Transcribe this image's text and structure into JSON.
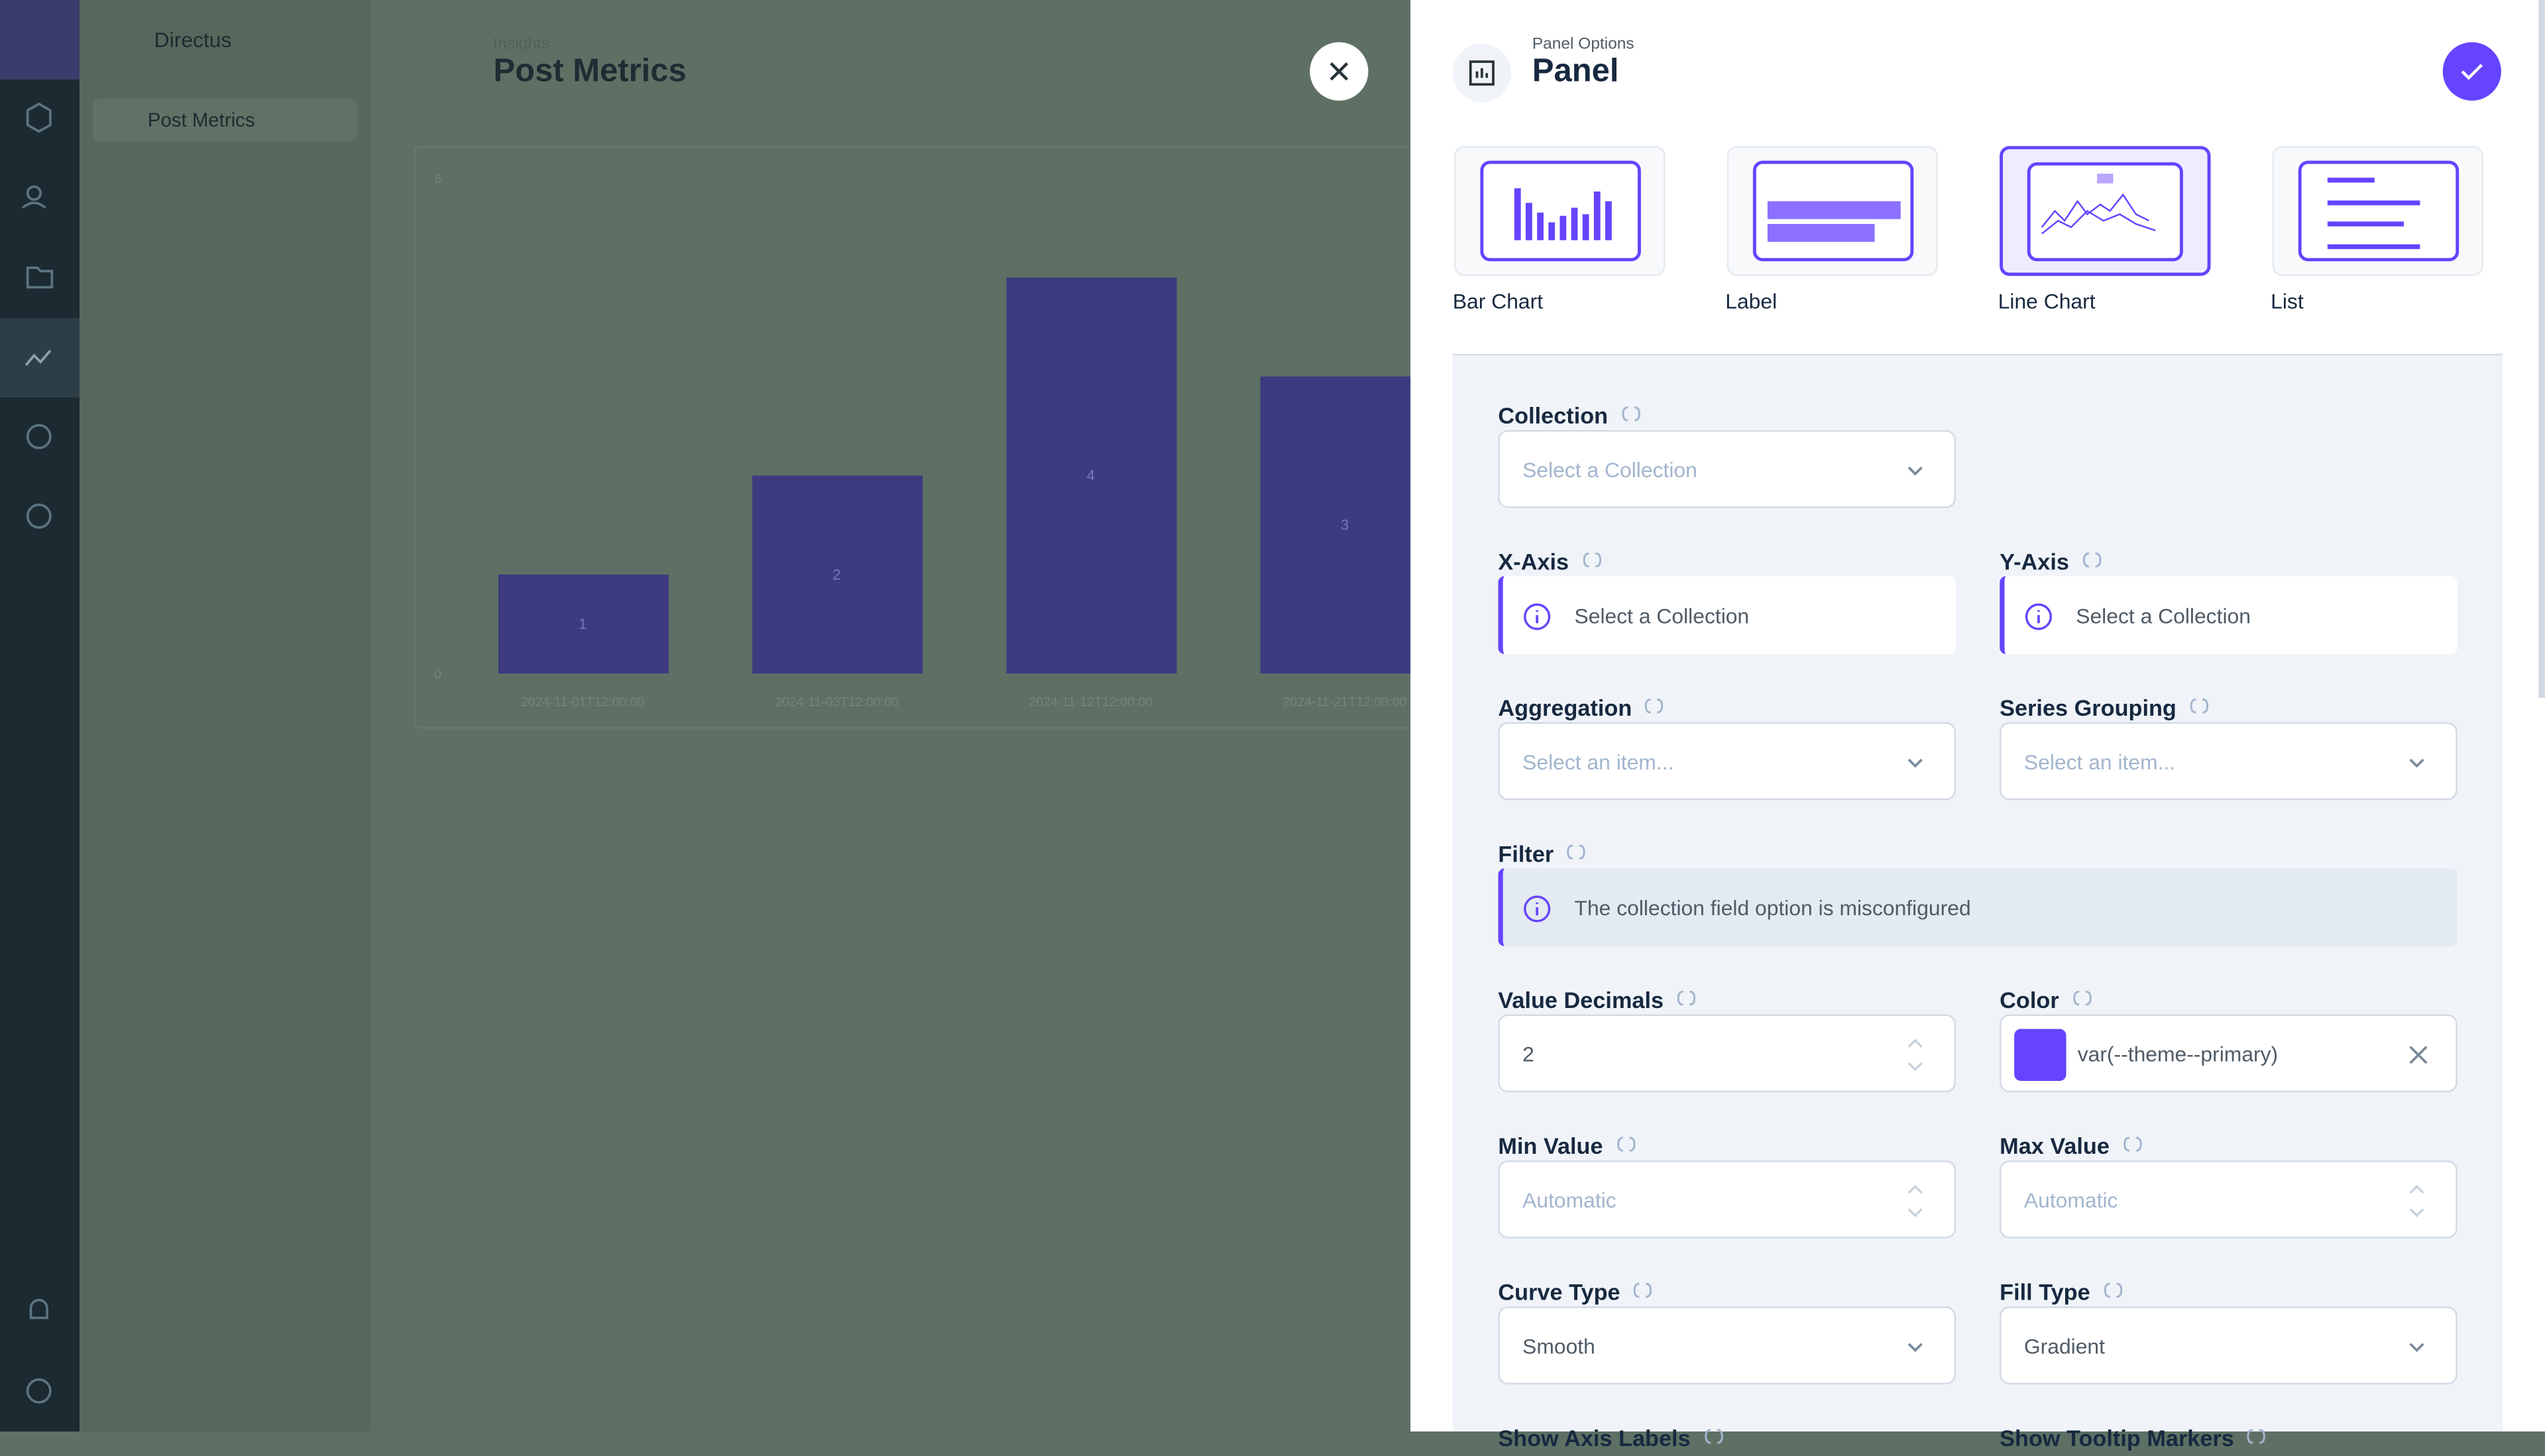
{
  "sidebar": {
    "project": "Directus",
    "nav_item": "Post Metrics"
  },
  "header": {
    "breadcrumb": "Insights",
    "title": "Post Metrics"
  },
  "panel_chart": {
    "categories": [
      "2024-11-01T12:00:00",
      "2024-11-03T12:00:00",
      "2024-11-12T12:00:00",
      "2024-11-21T12:00:00"
    ],
    "values": [
      1,
      2,
      4,
      3
    ],
    "ylim": [
      0,
      5
    ],
    "yticks": [
      0,
      5
    ]
  },
  "drawer": {
    "subtitle": "Panel Options",
    "title": "Panel",
    "panel_types": [
      "Bar Chart",
      "Label",
      "Line Chart",
      "List"
    ],
    "fields": [
      {
        "label": "Collection",
        "text": "Select a Collection"
      },
      {
        "label": "X-Axis",
        "text": "Select a Collection"
      },
      {
        "label": "Y-Axis",
        "text": "Select a Collection"
      },
      {
        "label": "Aggregation",
        "text": "Select an item..."
      },
      {
        "label": "Series Grouping",
        "text": "Select an item..."
      },
      {
        "label": "Filter",
        "text": "The collection field option is misconfigured"
      },
      {
        "label": "Value Decimals",
        "text": "2"
      },
      {
        "label": "Color",
        "text": "var(--theme--primary)"
      },
      {
        "label": "Min Value",
        "text": "Automatic"
      },
      {
        "label": "Max Value",
        "text": "Automatic"
      },
      {
        "label": "Curve Type",
        "text": "Smooth"
      },
      {
        "label": "Fill Type",
        "text": "Gradient"
      },
      {
        "label": "Show Axis Labels"
      },
      {
        "label": "Show Tooltip Markers"
      }
    ]
  }
}
